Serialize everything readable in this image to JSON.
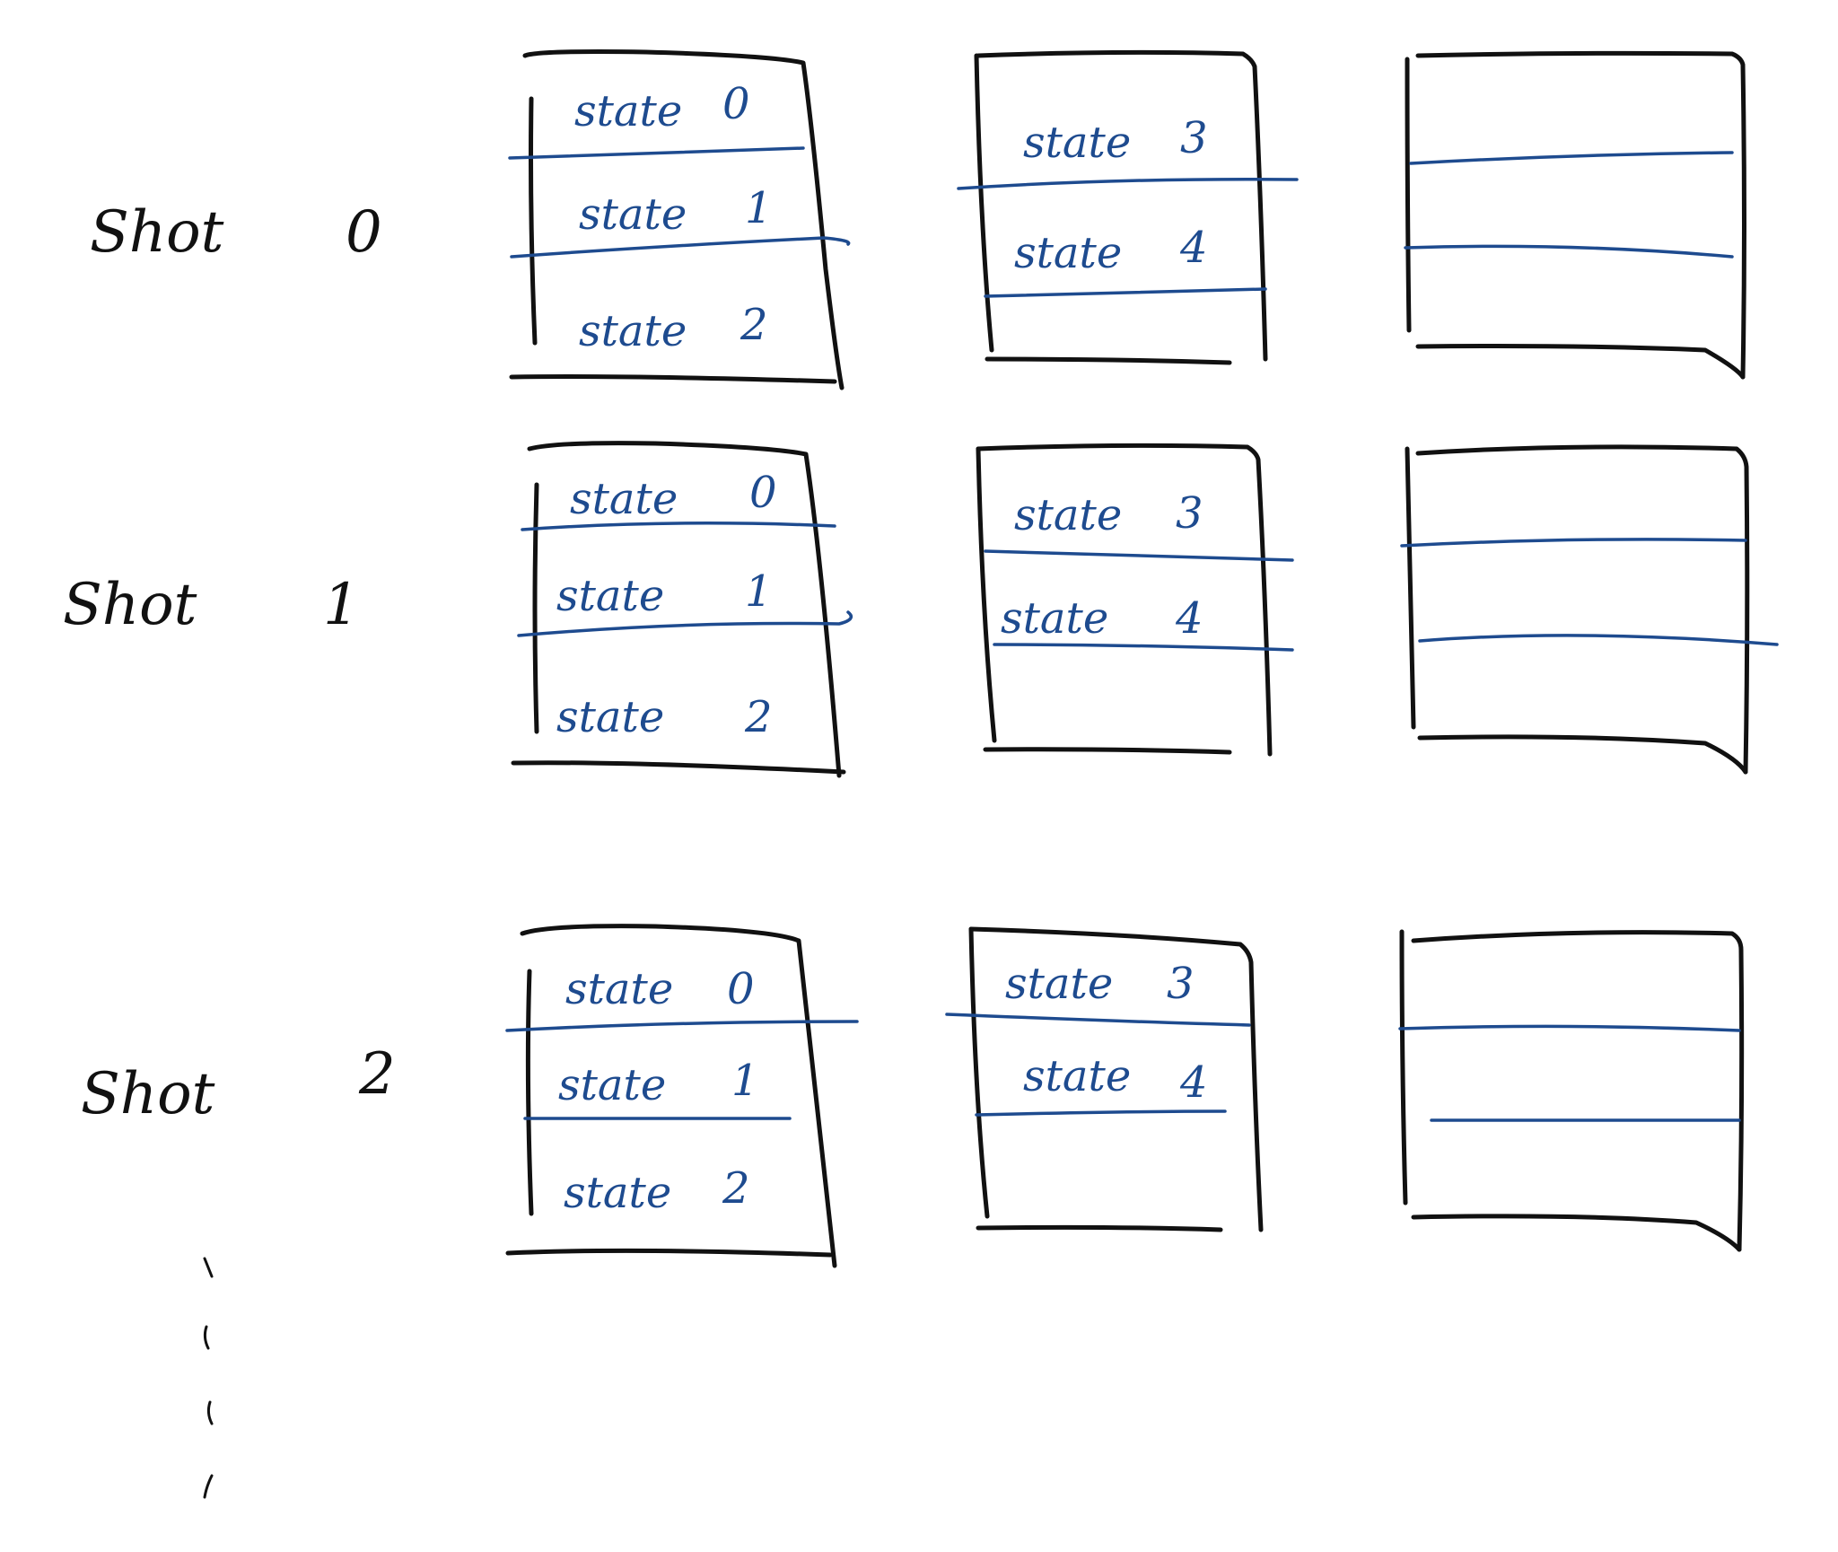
{
  "colors": {
    "ink": "#111111",
    "blue_ink": "#1e4b8f"
  },
  "shots": [
    {
      "label": "Shot",
      "number": "0",
      "boxes": [
        {
          "states": [
            {
              "word": "state",
              "num": "0"
            },
            {
              "word": "state",
              "num": "1"
            },
            {
              "word": "state",
              "num": "2"
            }
          ]
        },
        {
          "states": [
            {
              "word": "state",
              "num": "3"
            },
            {
              "word": "state",
              "num": "4"
            }
          ]
        },
        {
          "states": []
        }
      ]
    },
    {
      "label": "Shot",
      "number": "1",
      "boxes": [
        {
          "states": [
            {
              "word": "state",
              "num": "0"
            },
            {
              "word": "state",
              "num": "1"
            },
            {
              "word": "state",
              "num": "2"
            }
          ]
        },
        {
          "states": [
            {
              "word": "state",
              "num": "3"
            },
            {
              "word": "state",
              "num": "4"
            }
          ]
        },
        {
          "states": []
        }
      ]
    },
    {
      "label": "Shot",
      "number": "2",
      "boxes": [
        {
          "states": [
            {
              "word": "state",
              "num": "0"
            },
            {
              "word": "state",
              "num": "1"
            },
            {
              "word": "state",
              "num": "2"
            }
          ]
        },
        {
          "states": [
            {
              "word": "state",
              "num": "3"
            },
            {
              "word": "state",
              "num": "4"
            }
          ]
        },
        {
          "states": []
        }
      ]
    }
  ]
}
